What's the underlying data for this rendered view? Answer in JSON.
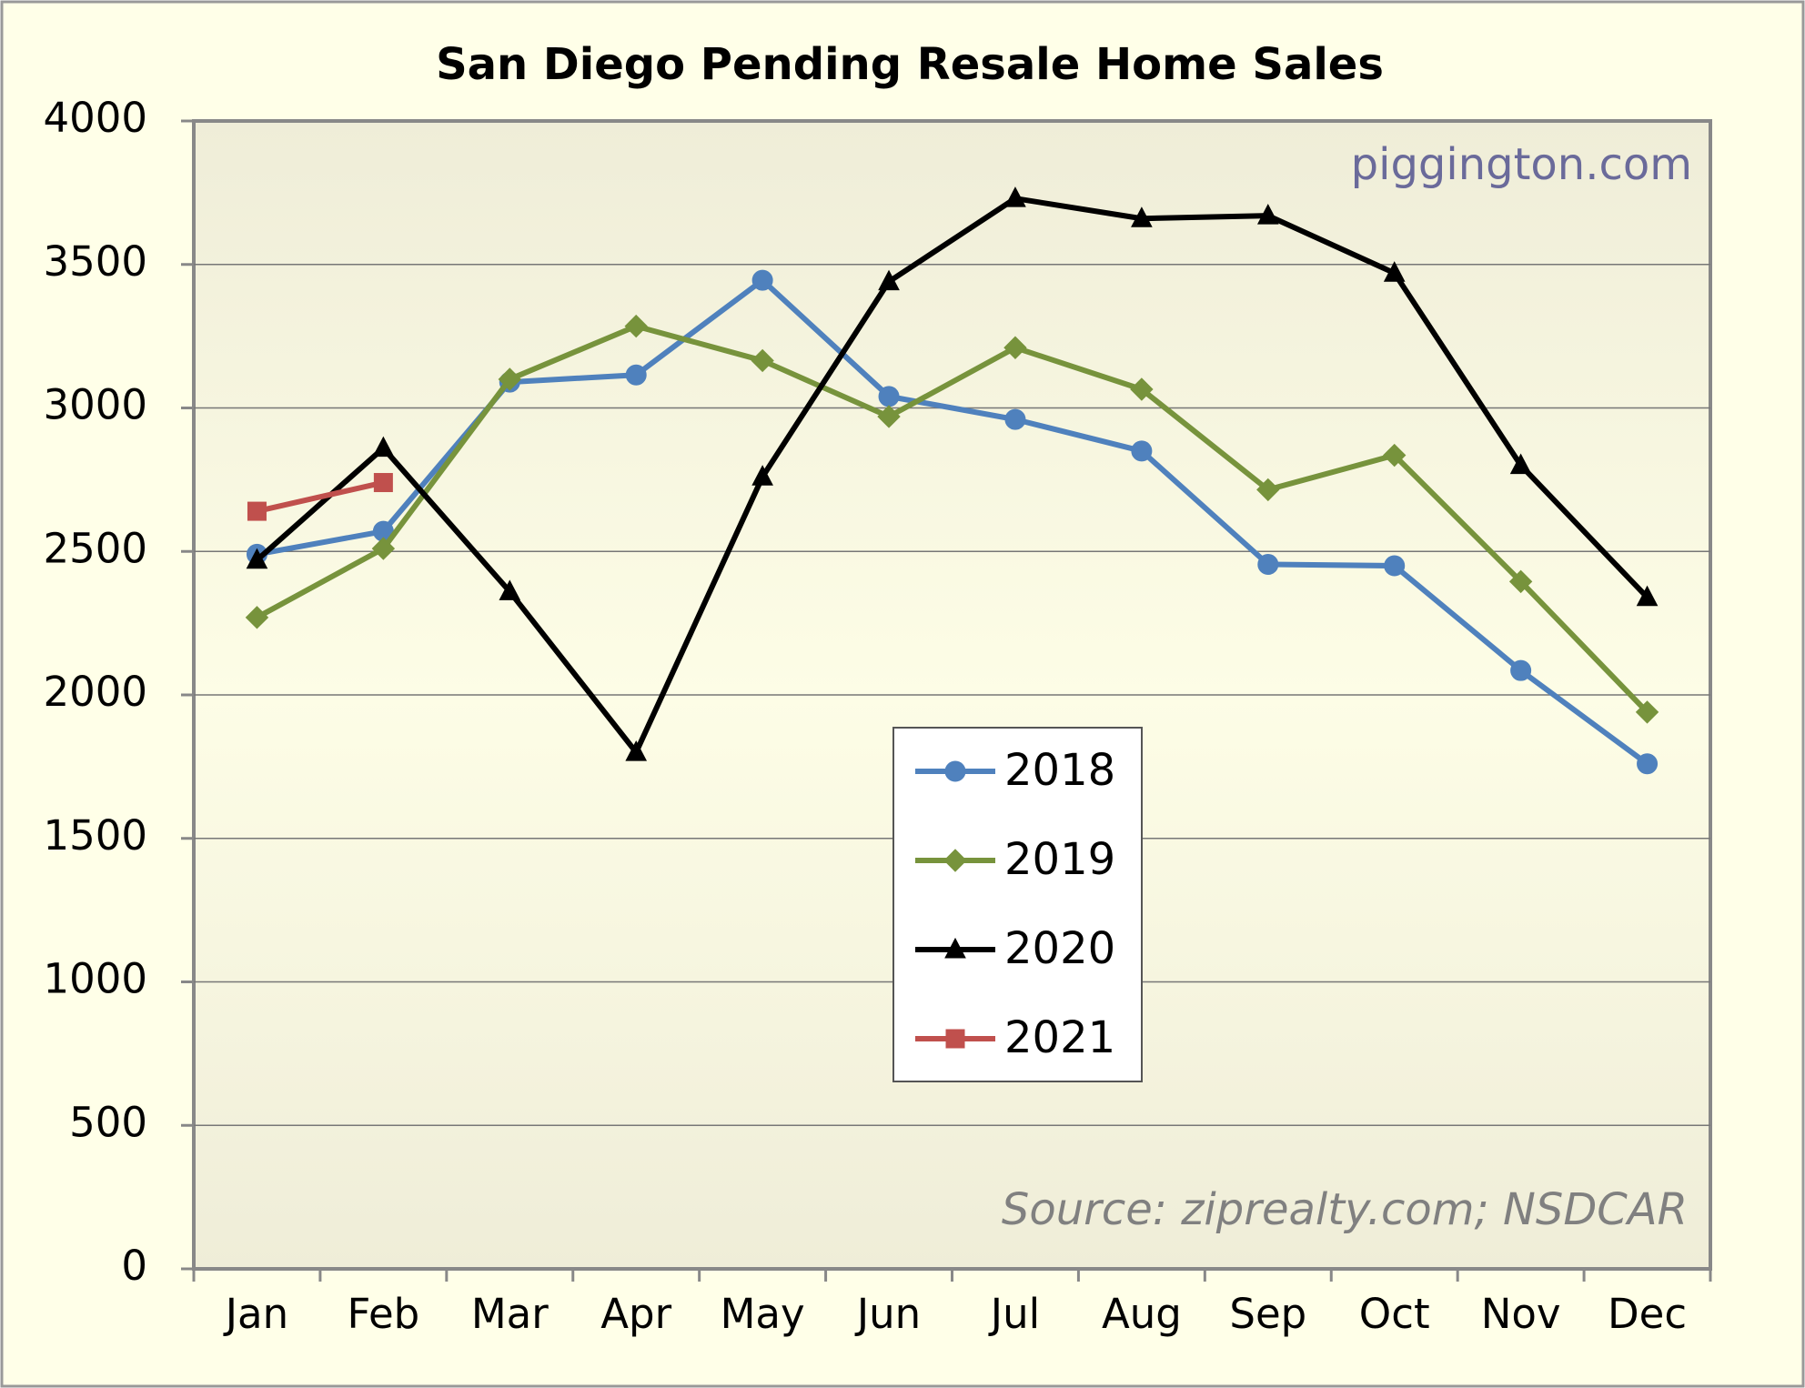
{
  "chart_data": {
    "type": "line",
    "title": "San Diego Pending Resale Home Sales",
    "annotations": [
      "piggington.com",
      "Source: ziprealty.com; NSDCAR"
    ],
    "categories": [
      "Jan",
      "Feb",
      "Mar",
      "Apr",
      "May",
      "Jun",
      "Jul",
      "Aug",
      "Sep",
      "Oct",
      "Nov",
      "Dec"
    ],
    "series": [
      {
        "name": "2018",
        "color": "#4f81bd",
        "marker": "circle",
        "values": [
          2490,
          2570,
          3090,
          3115,
          3445,
          3040,
          2960,
          2850,
          2455,
          2450,
          2085,
          1760
        ]
      },
      {
        "name": "2019",
        "color": "#77933c",
        "marker": "diamond",
        "values": [
          2270,
          2510,
          3100,
          3285,
          3165,
          2970,
          3210,
          3065,
          2715,
          2835,
          2395,
          1940
        ]
      },
      {
        "name": "2020",
        "color": "#000000",
        "marker": "triangle",
        "values": [
          2470,
          2860,
          2360,
          1800,
          2760,
          3440,
          3730,
          3660,
          3670,
          3470,
          2800,
          2340
        ]
      },
      {
        "name": "2021",
        "color": "#c0504d",
        "marker": "square",
        "values": [
          2640,
          2740,
          null,
          null,
          null,
          null,
          null,
          null,
          null,
          null,
          null,
          null
        ]
      }
    ],
    "ylim": [
      0,
      4000
    ],
    "yticks": [
      0,
      500,
      1000,
      1500,
      2000,
      2500,
      3000,
      3500,
      4000
    ],
    "grid": true
  }
}
